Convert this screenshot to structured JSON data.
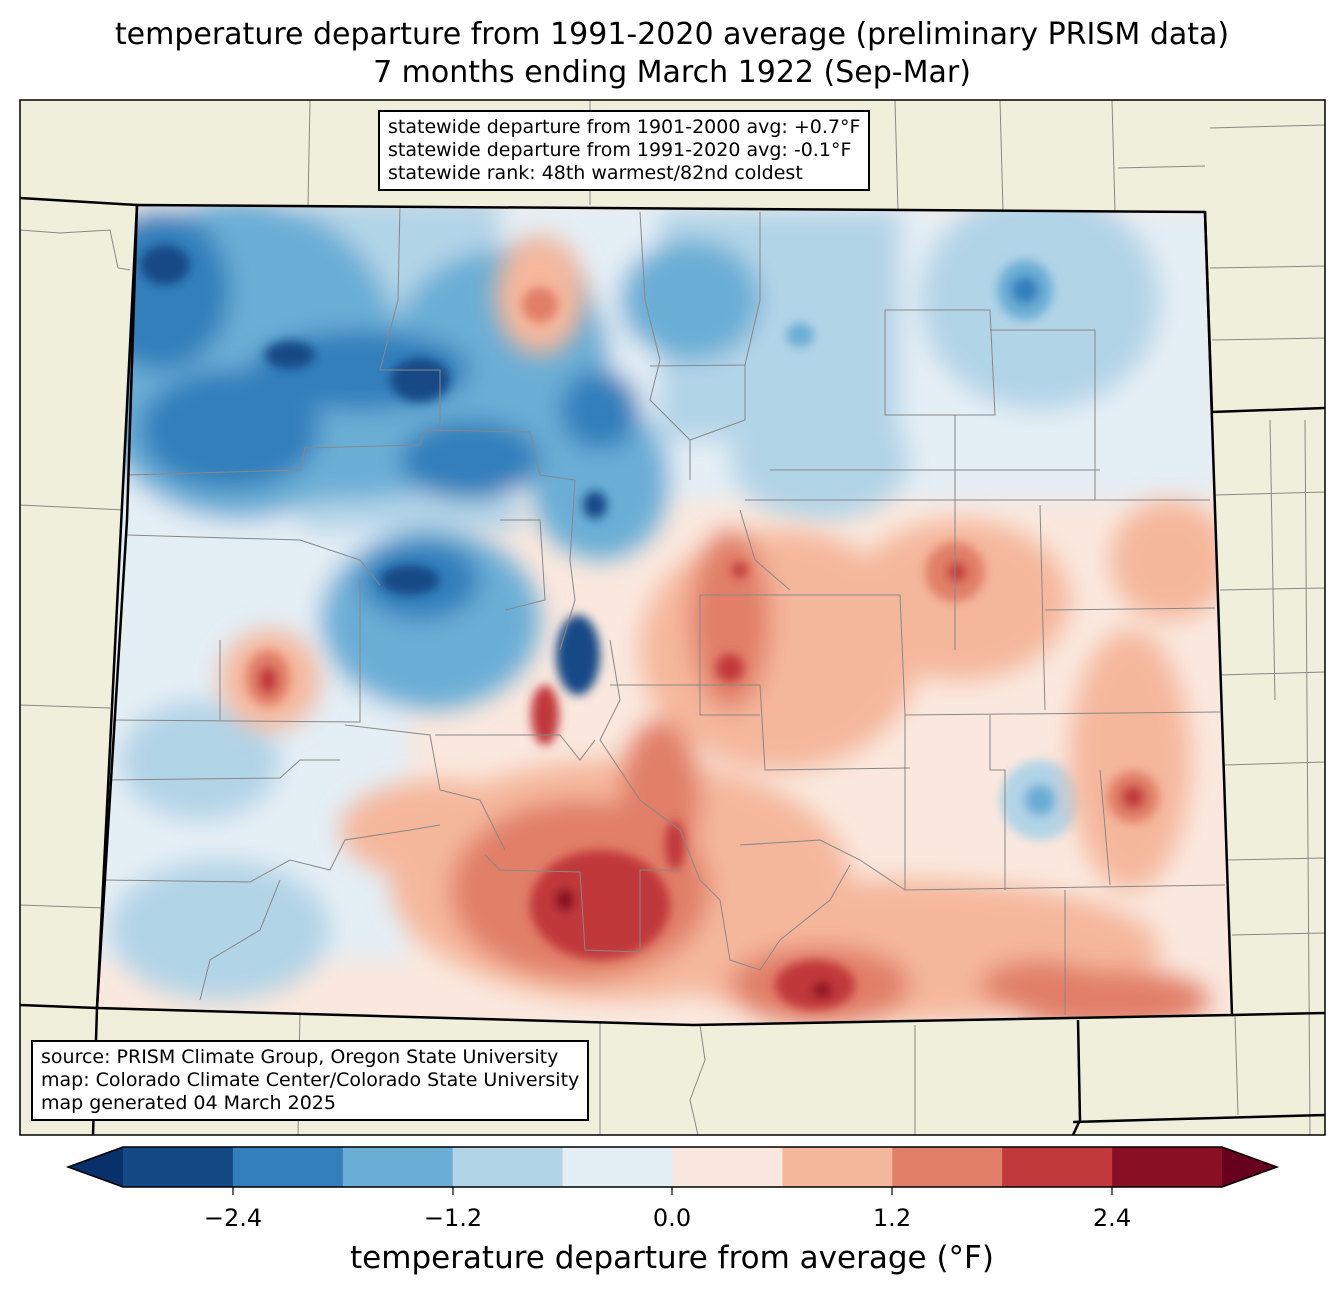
{
  "title": {
    "line1": "temperature departure from 1991-2020 average (preliminary PRISM data)",
    "line2": "7 months ending March 1922 (Sep-Mar)"
  },
  "stats": {
    "line1": "statewide departure from 1901-2000 avg: +0.7°F",
    "line2": "statewide departure from 1991-2020 avg: -0.1°F",
    "line3": "statewide rank: 48th warmest/82nd coldest"
  },
  "credits": {
    "line1": "source: PRISM Climate Group, Oregon State University",
    "line2": "map: Colorado Climate Center/Colorado State University",
    "line3": "map generated 04 March 2025"
  },
  "colorbar": {
    "label": "temperature departure from average (°F)",
    "ticks": [
      "−2.4",
      "−1.2",
      "0.0",
      "1.2",
      "2.4"
    ],
    "bins": [
      {
        "range": "< -3.0",
        "color": "#08306b"
      },
      {
        "range": "-3.0 to -2.4",
        "color": "#134a86"
      },
      {
        "range": "-2.4 to -1.8",
        "color": "#327fbb"
      },
      {
        "range": "-1.8 to -1.2",
        "color": "#6aaed6"
      },
      {
        "range": "-1.2 to -0.6",
        "color": "#b2d4e7"
      },
      {
        "range": "-0.6 to 0.0",
        "color": "#e4eef5"
      },
      {
        "range": "0.0 to 0.6",
        "color": "#fae8de"
      },
      {
        "range": "0.6 to 1.2",
        "color": "#f5b79c"
      },
      {
        "range": "1.2 to 1.8",
        "color": "#e17f68"
      },
      {
        "range": "1.8 to 2.4",
        "color": "#c1393a"
      },
      {
        "range": "2.4 to 3.0",
        "color": "#890f24"
      },
      {
        "range": "> 3.0",
        "color": "#67001f"
      }
    ]
  },
  "colors": {
    "land_outside": "#efefdb",
    "county_lines": "#888888",
    "state_lines": "#000000"
  }
}
